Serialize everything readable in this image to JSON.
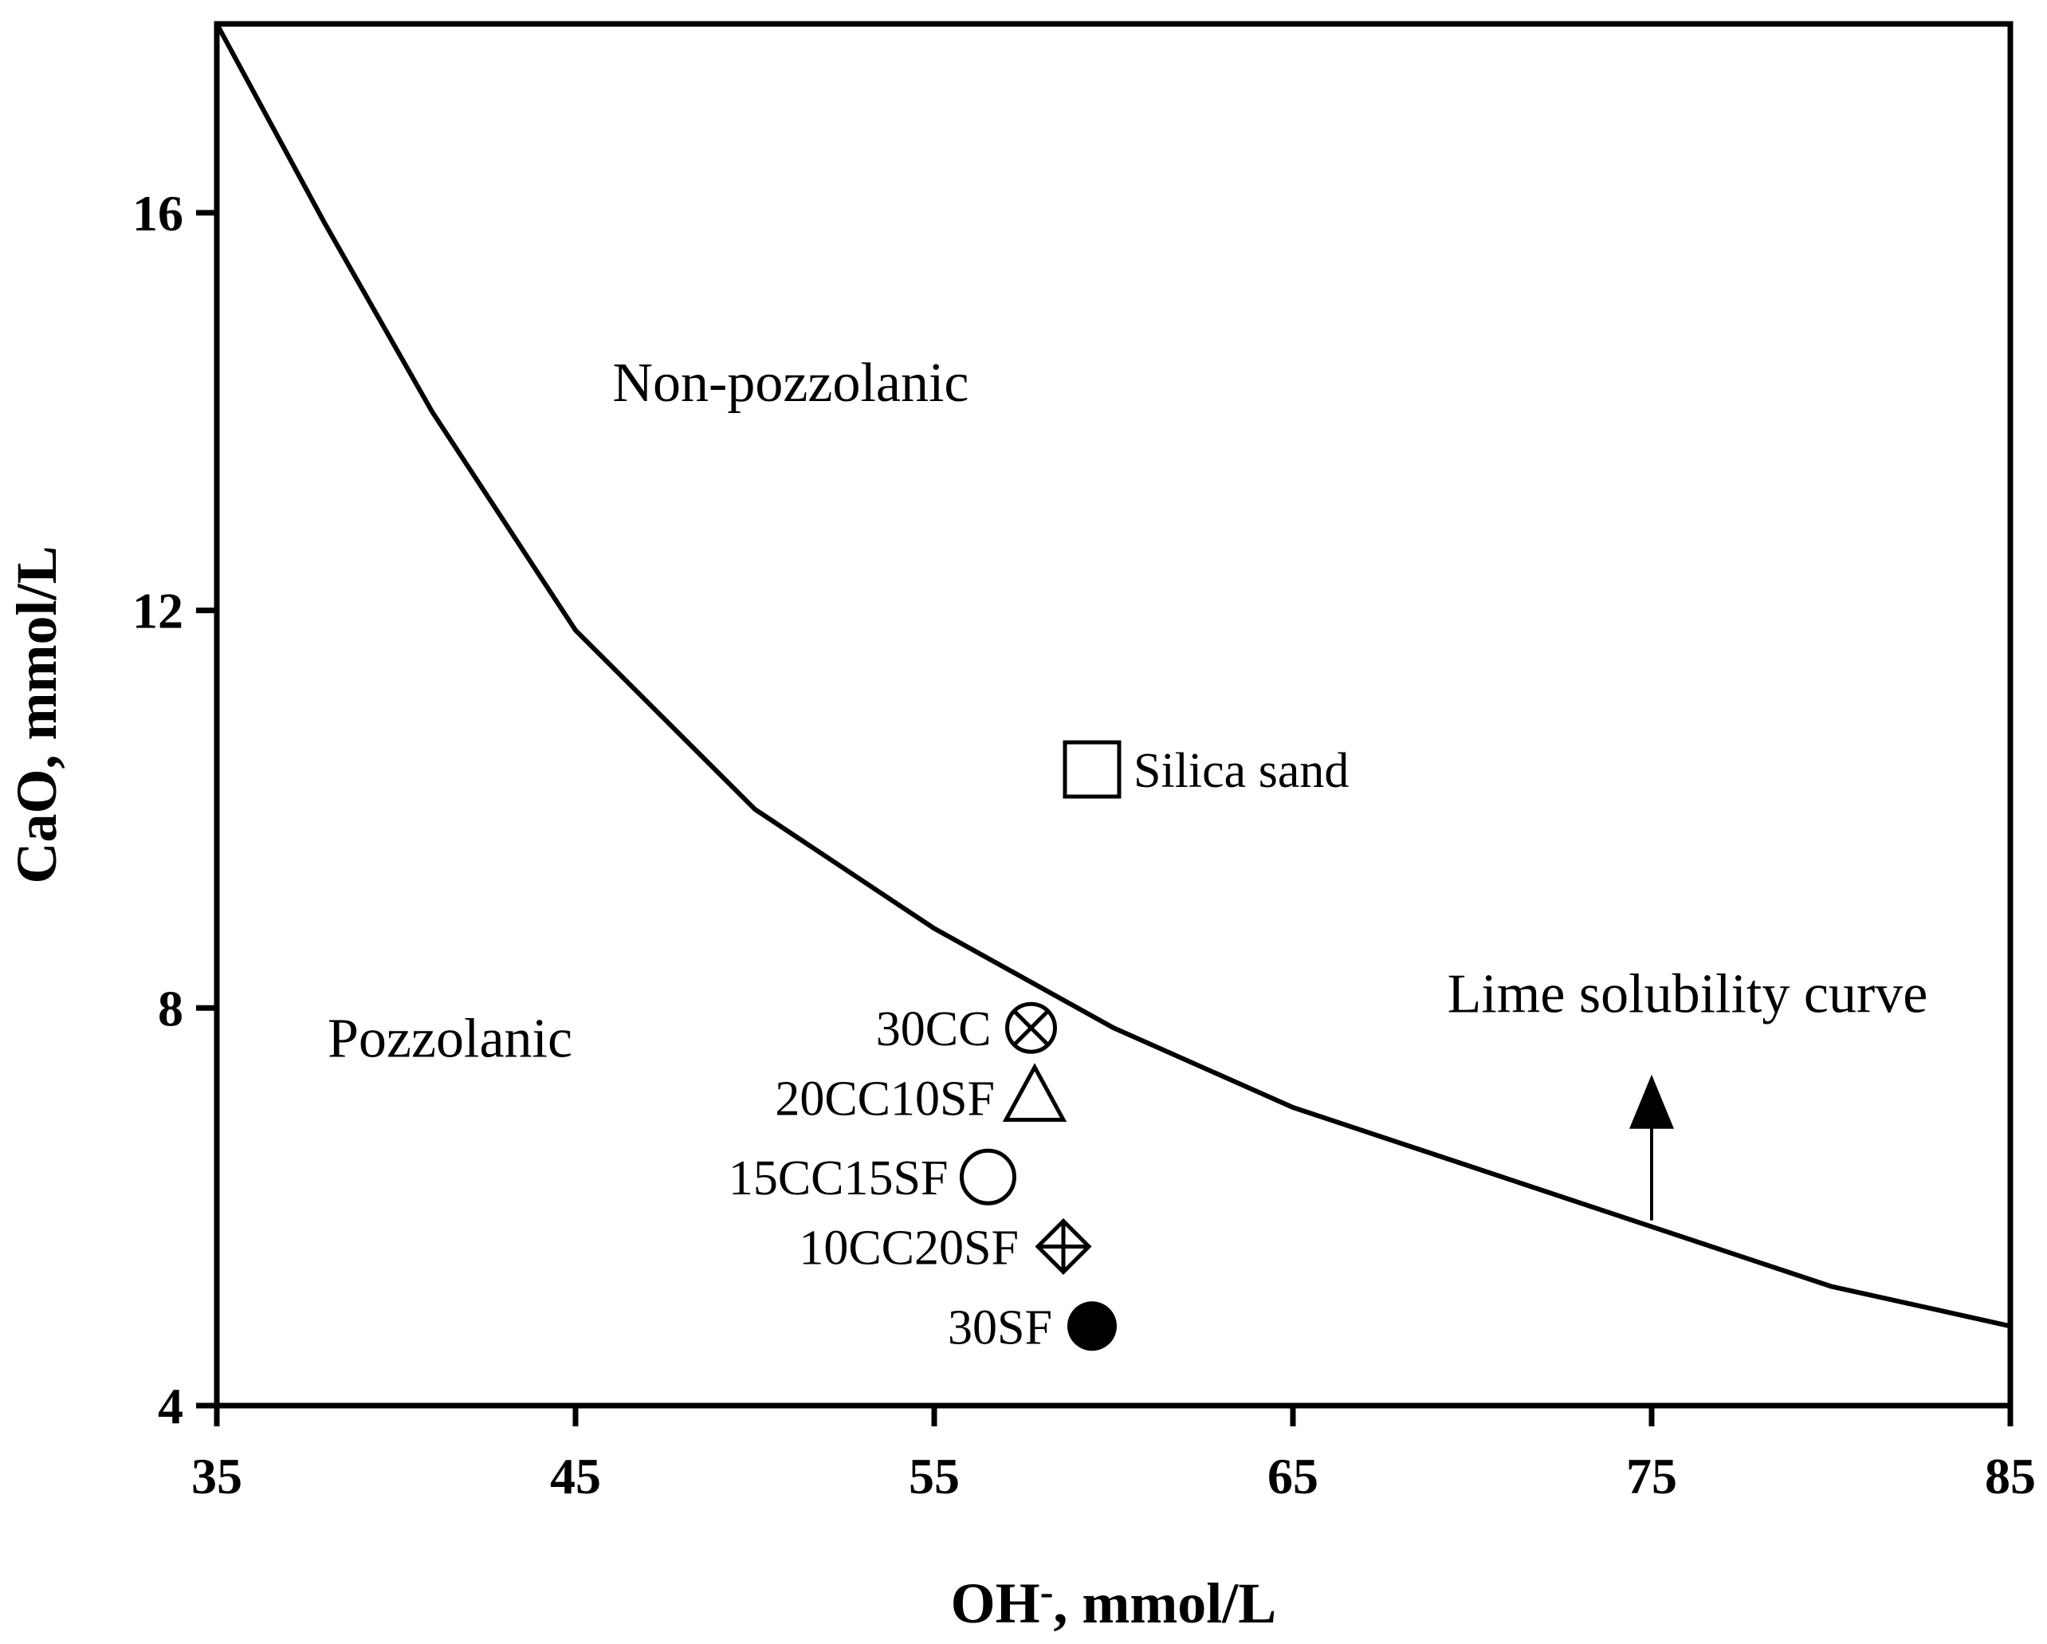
{
  "chart_data": {
    "type": "scatter",
    "title": "",
    "xlabel": "OH",
    "xlabel_superscript": "-",
    "xlabel_suffix": ", mmol/L",
    "ylabel": "CaO, mmol/L",
    "xlim": [
      35,
      85
    ],
    "ylim": [
      4,
      17.9
    ],
    "xticks": [
      35,
      45,
      55,
      65,
      75,
      85
    ],
    "yticks": [
      4,
      8,
      12,
      16
    ],
    "grid": false,
    "curve": {
      "name": "Lime solubility curve",
      "x": [
        35,
        38,
        41,
        45,
        50,
        55,
        60,
        65,
        70,
        75,
        80,
        85
      ],
      "y": [
        17.9,
        15.9,
        14.0,
        11.8,
        10.0,
        8.8,
        7.8,
        7.0,
        6.4,
        5.8,
        5.2,
        4.8
      ]
    },
    "series": [
      {
        "name": "Silica sand",
        "marker": "open-square",
        "x": 59.4,
        "y": 10.4
      },
      {
        "name": "30CC",
        "marker": "circle-x",
        "x": 57.7,
        "y": 7.8
      },
      {
        "name": "20CC10SF",
        "marker": "open-triangle",
        "x": 57.8,
        "y": 7.1
      },
      {
        "name": "15CC15SF",
        "marker": "open-circle",
        "x": 56.5,
        "y": 6.3
      },
      {
        "name": "10CC20SF",
        "marker": "diamond-plus",
        "x": 58.6,
        "y": 5.6
      },
      {
        "name": "30SF",
        "marker": "filled-circle",
        "x": 59.4,
        "y": 4.8
      }
    ],
    "annotations": [
      {
        "text": "Non-pozzolanic",
        "x": 51.0,
        "y": 14.3
      },
      {
        "text": "Pozzolanic",
        "x": 41.5,
        "y": 7.7
      },
      {
        "text": "Lime solubility curve",
        "x": 76.0,
        "y": 8.15
      }
    ]
  }
}
